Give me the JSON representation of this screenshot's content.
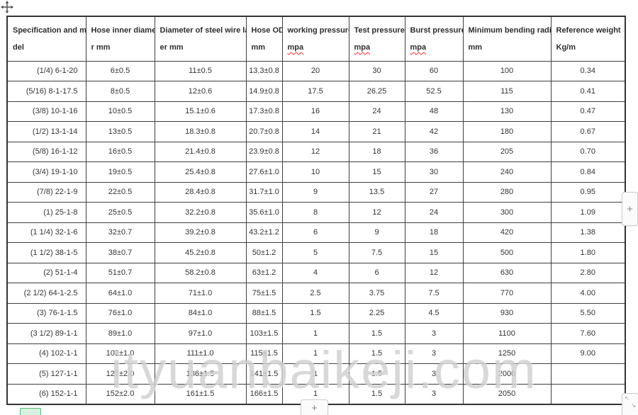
{
  "watermark": {
    "text": "ityuanbaikeji.com"
  },
  "colors": {
    "table_border": "#3f3f3f",
    "text": "#333333",
    "spellcheck_underline": "#ff2a2a",
    "watermark_gray": "#b8b8b8",
    "handle_background": "#fbfbfb",
    "handle_border": "#cdcdcd",
    "green_button_fill": "#d7f2e0",
    "green_button_border": "#58b878"
  },
  "controls": {
    "add_column_label": "+",
    "add_row_label": "+"
  },
  "icons": {
    "move_icon": "four-direction move cross",
    "resize_nw": "↖",
    "resize_se": "↘"
  },
  "table": {
    "headers": [
      {
        "line1": "Specification and mo",
        "line2": "del"
      },
      {
        "line1": "Hose inner diamete",
        "line2": "r mm"
      },
      {
        "line1": "Diameter of steel wire lay",
        "line2": "er mm"
      },
      {
        "line1": "Hose OD",
        "line2": "mm"
      },
      {
        "line1": "working pressure",
        "line2": "mpa",
        "misspelled": true
      },
      {
        "line1": "Test pressure",
        "line2": "mpa",
        "misspelled": true
      },
      {
        "line1": "Burst pressure",
        "line2": "mpa",
        "misspelled": true
      },
      {
        "line1": "Minimum bending radius",
        "line2": "mm"
      },
      {
        "line1": "Reference weight",
        "line2": "Kg/m"
      }
    ],
    "rows": [
      [
        "(1/4) 6-1-20",
        "6±0.5",
        "11±0.5",
        "13.3±0.8",
        "20",
        "30",
        "60",
        "100",
        "0.34"
      ],
      [
        "(5/16) 8-1-17.5",
        "8±0.5",
        "12±0.6",
        "14.9±0.8",
        "17.5",
        "26.25",
        "52.5",
        "115",
        "0.41"
      ],
      [
        "(3/8) 10-1-16",
        "10±0.5",
        "15.1±0.6",
        "17.3±0.8",
        "16",
        "24",
        "48",
        "130",
        "0.47"
      ],
      [
        "(1/2) 13-1-14",
        "13±0.5",
        "18.3±0.8",
        "20.7±0.8",
        "14",
        "21",
        "42",
        "180",
        "0.67"
      ],
      [
        "(5/8) 16-1-12",
        "16±0.5",
        "21.4±0.8",
        "23.9±0.8",
        "12",
        "18",
        "36",
        "205",
        "0.70"
      ],
      [
        "(3/4) 19-1-10",
        "19±0.5",
        "25.4±0.8",
        "27.6±1.0",
        "10",
        "15",
        "30",
        "240",
        "0.84"
      ],
      [
        "(7/8) 22-1-9",
        "22±0.5",
        "28.4±0.8",
        "31.7±1.0",
        "9",
        "13.5",
        "27",
        "280",
        "0.95"
      ],
      [
        "(1) 25-1-8",
        "25±0.5",
        "32.2±0.8",
        "35.6±1.0",
        "8",
        "12",
        "24",
        "300",
        "1.09"
      ],
      [
        "(1 1/4) 32-1-6",
        "32±0.7",
        "39.2±0.8",
        "43.2±1.2",
        "6",
        "9",
        "18",
        "420",
        "1.38"
      ],
      [
        "(1 1/2) 38-1-5",
        "38±0.7",
        "45.2±0.8",
        "50±1.2",
        "5",
        "7.5",
        "15",
        "500",
        "1.80"
      ],
      [
        "(2) 51-1-4",
        "51±0.7",
        "58.2±0.8",
        "63±1.2",
        "4",
        "6",
        "12",
        "630",
        "2.80"
      ],
      [
        "(2 1/2) 64-1-2.5",
        "64±1.0",
        "71±1.0",
        "75±1.5",
        "2.5",
        "3.75",
        "7.5",
        "770",
        "4.00"
      ],
      [
        "(3) 76-1-1.5",
        "76±1.0",
        "84±1.0",
        "88±1.5",
        "1.5",
        "2.25",
        "4.5",
        "930",
        "5.50"
      ],
      [
        "(3 1/2) 89-1-1",
        "89±1.0",
        "97±1.0",
        "103±1.5",
        "1",
        "1.5",
        "3",
        "1100",
        "7.60"
      ],
      [
        "(4) 102-1-1",
        "102±1.0",
        "111±1.0",
        "115±1.5",
        "1",
        "1.5",
        "3",
        "1250",
        "9.00"
      ],
      [
        "(5) 127-1-1",
        "127±2.0",
        "136±1.5",
        "141±1.5",
        "1",
        "1.5",
        "3",
        "2000",
        ""
      ],
      [
        "(6) 152-1-1",
        "152±2.0",
        "161±1.5",
        "166±1.5",
        "1",
        "1.5",
        "3",
        "2050",
        ""
      ]
    ]
  }
}
